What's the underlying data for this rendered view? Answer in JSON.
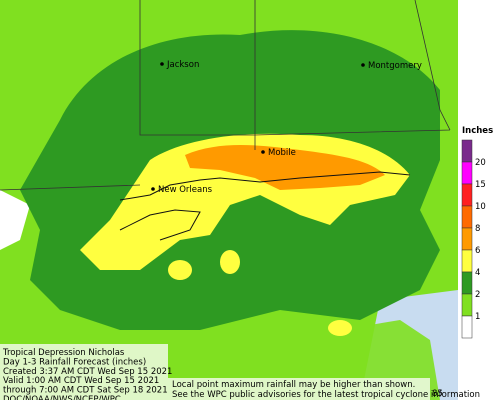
{
  "map": {
    "cities": [
      {
        "label": "Jackson"
      },
      {
        "label": "Montgomery"
      },
      {
        "label": "Mobile"
      },
      {
        "label": "New Orleans"
      }
    ],
    "corner_label": "85"
  },
  "legend": {
    "title": "Inches",
    "labels": [
      "20",
      "15",
      "10",
      "8",
      "6",
      "4",
      "2",
      "1"
    ],
    "colors": [
      "#7a2a8c",
      "#ff00ff",
      "#ff2020",
      "#ff6a00",
      "#ff9a00",
      "#ffff40",
      "#2e9a22",
      "#80e020",
      "#ffffff"
    ]
  },
  "info": {
    "lines": [
      "Tropical Depression Nicholas",
      "Day 1-3 Rainfall Forecast (inches)",
      "Created 3:37 AM CDT Wed Sep 15 2021",
      "Valid 1:00 AM CDT Wed Sep 15 2021",
      "through 7:00 AM CDT Sat Sep 18 2021",
      "DOC/NOAA/NWS/NCEP/WPC"
    ]
  },
  "notes": {
    "lines": [
      "Local point maximum rainfall may be higher than shown.",
      "See the WPC public advisories for the latest tropical cyclone information"
    ]
  }
}
